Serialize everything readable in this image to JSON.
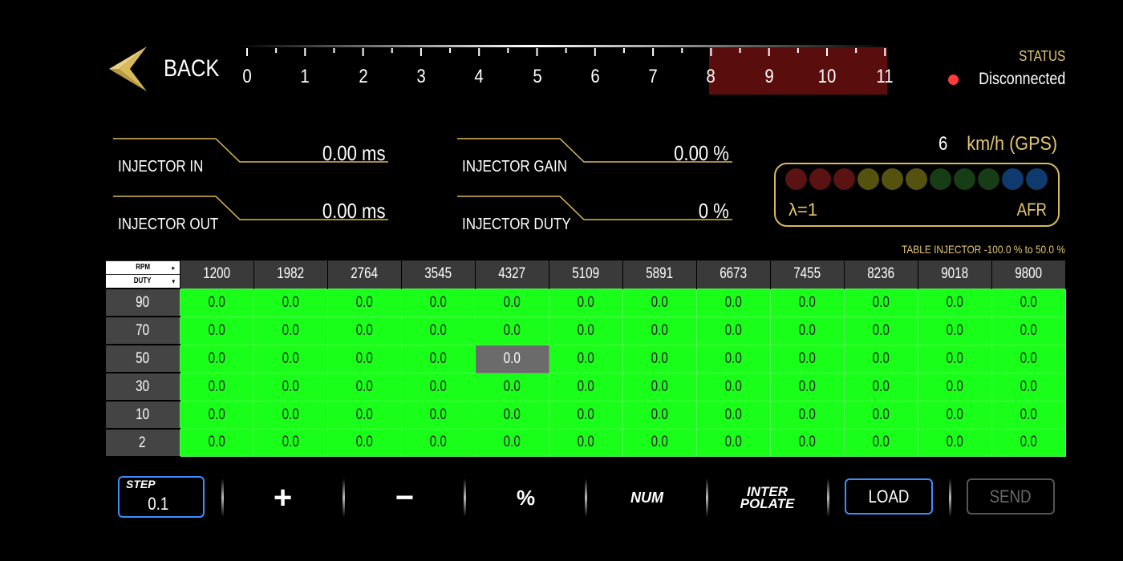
{
  "header": {
    "back_label": "BACK",
    "tach_ticks": [
      "0",
      "1",
      "2",
      "3",
      "4",
      "5",
      "6",
      "7",
      "8",
      "9",
      "10",
      "11"
    ],
    "status_title": "STATUS",
    "status_text": "Disconnected",
    "colors": {
      "gold": "#e5c66f",
      "status_red": "#ff3b3b",
      "redline": "#5a0d0d"
    }
  },
  "readouts": {
    "injector_in": {
      "label": "INJECTOR IN",
      "value": "0.00 ms"
    },
    "injector_out": {
      "label": "INJECTOR OUT",
      "value": "0.00 ms"
    },
    "injector_gain": {
      "label": "INJECTOR GAIN",
      "value": "0.00 %"
    },
    "injector_duty": {
      "label": "INJECTOR DUTY",
      "value": "0 %"
    }
  },
  "speed": {
    "value": "6",
    "unit": "km/h (GPS)"
  },
  "lambda": {
    "left_label": "λ=1",
    "right_label": "AFR",
    "dot_colors": [
      "#5a1212",
      "#5a1212",
      "#5a1212",
      "#55520f",
      "#55520f",
      "#55520f",
      "#173d17",
      "#173d17",
      "#173d17",
      "#0e3a6e",
      "#0e3a6e"
    ]
  },
  "table": {
    "range_label": "TABLE INJECTOR -100.0 % to 50.0 %",
    "corner_top": "RPM",
    "corner_bottom": "DUTY",
    "columns": [
      "1200",
      "1982",
      "2764",
      "3545",
      "4327",
      "5109",
      "5891",
      "6673",
      "7455",
      "8236",
      "9018",
      "9800"
    ],
    "rows": [
      {
        "label": "90",
        "values": [
          "0.0",
          "0.0",
          "0.0",
          "0.0",
          "0.0",
          "0.0",
          "0.0",
          "0.0",
          "0.0",
          "0.0",
          "0.0",
          "0.0"
        ]
      },
      {
        "label": "70",
        "values": [
          "0.0",
          "0.0",
          "0.0",
          "0.0",
          "0.0",
          "0.0",
          "0.0",
          "0.0",
          "0.0",
          "0.0",
          "0.0",
          "0.0"
        ]
      },
      {
        "label": "50",
        "values": [
          "0.0",
          "0.0",
          "0.0",
          "0.0",
          "0.0",
          "0.0",
          "0.0",
          "0.0",
          "0.0",
          "0.0",
          "0.0",
          "0.0"
        ]
      },
      {
        "label": "30",
        "values": [
          "0.0",
          "0.0",
          "0.0",
          "0.0",
          "0.0",
          "0.0",
          "0.0",
          "0.0",
          "0.0",
          "0.0",
          "0.0",
          "0.0"
        ]
      },
      {
        "label": "10",
        "values": [
          "0.0",
          "0.0",
          "0.0",
          "0.0",
          "0.0",
          "0.0",
          "0.0",
          "0.0",
          "0.0",
          "0.0",
          "0.0",
          "0.0"
        ]
      },
      {
        "label": "2",
        "values": [
          "0.0",
          "0.0",
          "0.0",
          "0.0",
          "0.0",
          "0.0",
          "0.0",
          "0.0",
          "0.0",
          "0.0",
          "0.0",
          "0.0"
        ]
      }
    ],
    "selected_cell": {
      "row": 2,
      "col": 4
    },
    "cell_color": "#1aff1a"
  },
  "toolbar": {
    "step_label": "STEP",
    "step_value": "0.1",
    "plus_label": "+",
    "minus_label": "−",
    "percent_label": "%",
    "num_label": "NUM",
    "interpolate_line1": "INTER",
    "interpolate_line2": "POLATE",
    "load_label": "LOAD",
    "send_label": "SEND"
  }
}
